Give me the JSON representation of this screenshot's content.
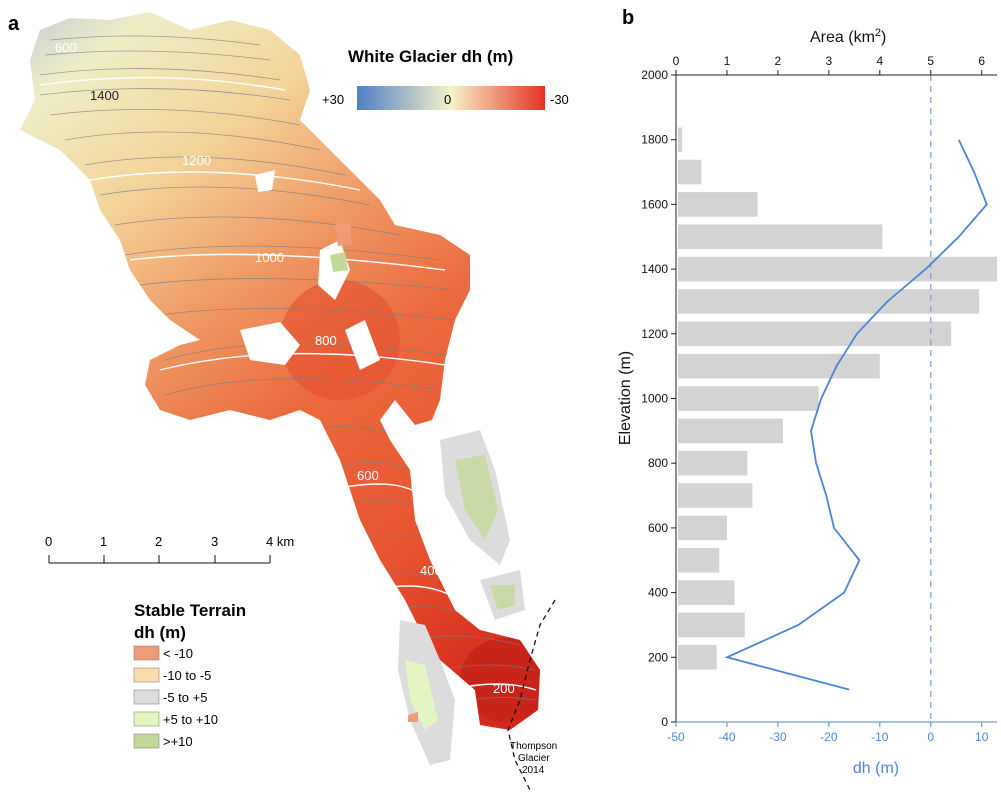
{
  "panel_a": {
    "letter": "a",
    "colorbar": {
      "title": "White Glacier dh (m)",
      "left_label": "+30",
      "mid_label": "0",
      "right_label": "-30",
      "colors": [
        "#4f7fc6",
        "#f6f2c8",
        "#e43224"
      ]
    },
    "contour_labels": [
      "600",
      "1400",
      "1200",
      "1000",
      "800",
      "600",
      "400",
      "200"
    ],
    "scalebar": {
      "ticks": [
        "0",
        "1",
        "2",
        "3",
        "4 km"
      ]
    },
    "stable_legend": {
      "title_line1": "Stable Terrain",
      "title_line2": "dh (m)",
      "items": [
        {
          "label": "< -10",
          "color": "#f09a78"
        },
        {
          "label": "-10 to -5",
          "color": "#fbdcaa"
        },
        {
          "label": "-5 to +5",
          "color": "#dcdcdc"
        },
        {
          "label": "+5 to +10",
          "color": "#e4f6c0"
        },
        {
          "label": ">+10",
          "color": "#c4d89a"
        }
      ]
    },
    "annotation": {
      "line1": "Thompson",
      "line2": "Glacier",
      "line3": "2014"
    },
    "colors": {
      "high": "#f3efbe",
      "mid": "#f0a06a",
      "low": "#e5432a",
      "terminus": "#c21f16",
      "contour_white": "#ffffff",
      "contour_grey": "#888888"
    }
  },
  "chart_data": {
    "type": "bar",
    "panel_letter": "b",
    "orientation": "horizontal",
    "x_top_label": "Area (km",
    "x_top_label_sup": "2",
    "x_top_label_close": ")",
    "x_top_ticks": [
      "0",
      "1",
      "2",
      "3",
      "4",
      "5",
      "6"
    ],
    "x_top_lim": [
      0,
      6.3
    ],
    "x_bottom_label": "dh (m)",
    "x_bottom_ticks": [
      "-50",
      "-40",
      "-30",
      "-20",
      "-10",
      "0",
      "10"
    ],
    "x_bottom_lim": [
      -50,
      13
    ],
    "ylabel": "Elevation (m)",
    "y_ticks": [
      "0",
      "200",
      "400",
      "600",
      "800",
      "1000",
      "1200",
      "1400",
      "1600",
      "1800",
      "2000"
    ],
    "ylim": [
      0,
      2000
    ],
    "bar_color": "#d3d3d3",
    "line_color": "#4a86d8",
    "zero_line_color": "#7fa7dc",
    "area_bins": [
      {
        "elevation": 200,
        "area": 0.8
      },
      {
        "elevation": 300,
        "area": 1.35
      },
      {
        "elevation": 400,
        "area": 1.15
      },
      {
        "elevation": 500,
        "area": 0.85
      },
      {
        "elevation": 600,
        "area": 1.0
      },
      {
        "elevation": 700,
        "area": 1.5
      },
      {
        "elevation": 800,
        "area": 1.4
      },
      {
        "elevation": 900,
        "area": 2.1
      },
      {
        "elevation": 1000,
        "area": 2.8
      },
      {
        "elevation": 1100,
        "area": 4.0
      },
      {
        "elevation": 1200,
        "area": 5.4
      },
      {
        "elevation": 1300,
        "area": 5.95
      },
      {
        "elevation": 1400,
        "area": 6.3
      },
      {
        "elevation": 1500,
        "area": 4.05
      },
      {
        "elevation": 1600,
        "area": 1.6
      },
      {
        "elevation": 1700,
        "area": 0.5
      },
      {
        "elevation": 1800,
        "area": 0.12
      }
    ],
    "dh_profile": [
      {
        "elevation": 100,
        "dh": -16
      },
      {
        "elevation": 200,
        "dh": -40
      },
      {
        "elevation": 300,
        "dh": -26
      },
      {
        "elevation": 400,
        "dh": -17
      },
      {
        "elevation": 500,
        "dh": -14
      },
      {
        "elevation": 600,
        "dh": -19
      },
      {
        "elevation": 700,
        "dh": -20.5
      },
      {
        "elevation": 800,
        "dh": -22.5
      },
      {
        "elevation": 900,
        "dh": -23.5
      },
      {
        "elevation": 1000,
        "dh": -21.5
      },
      {
        "elevation": 1100,
        "dh": -18.5
      },
      {
        "elevation": 1200,
        "dh": -14.5
      },
      {
        "elevation": 1300,
        "dh": -8.5
      },
      {
        "elevation": 1400,
        "dh": -1
      },
      {
        "elevation": 1500,
        "dh": 5.5
      },
      {
        "elevation": 1600,
        "dh": 11
      },
      {
        "elevation": 1700,
        "dh": 8.5
      },
      {
        "elevation": 1800,
        "dh": 5.5
      }
    ]
  }
}
